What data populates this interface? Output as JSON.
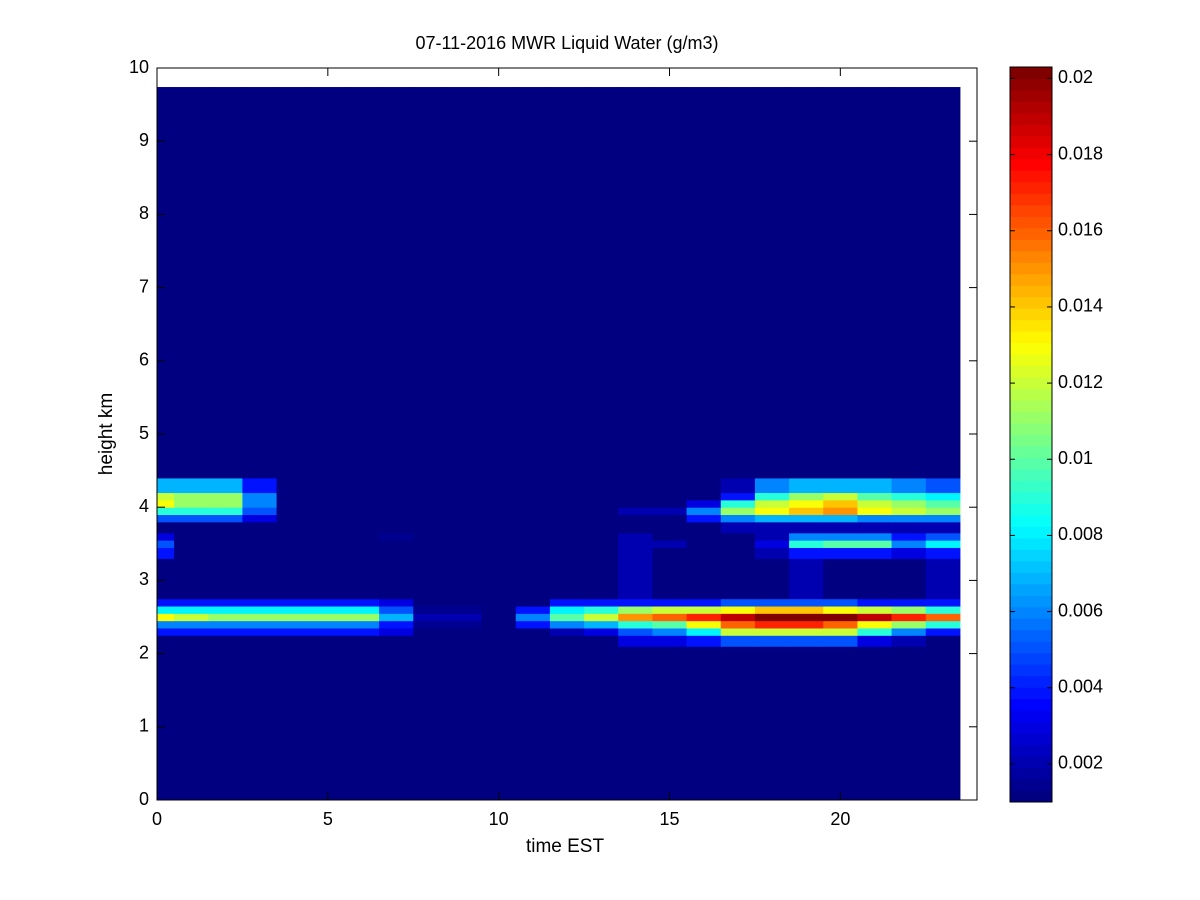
{
  "chart_data": {
    "type": "heatmap",
    "title": "07-11-2016 MWR Liquid Water (g/m3)",
    "x_label": "time EST",
    "y_label": "height km",
    "colormap": "jet",
    "xlim": [
      0,
      24
    ],
    "ylim": [
      0,
      10
    ],
    "xticks": [
      0,
      5,
      10,
      15,
      20
    ],
    "yticks": [
      0,
      1,
      2,
      3,
      4,
      5,
      6,
      7,
      8,
      9,
      10
    ],
    "clim": [
      0.001,
      0.0203
    ],
    "cticks": [
      0.002,
      0.004,
      0.006,
      0.008,
      0.01,
      0.012,
      0.014,
      0.016,
      0.018,
      0.02
    ],
    "x": [
      0,
      1,
      2,
      3,
      4,
      5,
      6,
      7,
      8,
      9,
      10,
      11,
      12,
      13,
      14,
      15,
      16,
      17,
      18,
      19,
      20,
      21,
      22,
      23
    ],
    "y_bins": [
      0,
      2.1,
      2.25,
      2.35,
      2.45,
      2.55,
      2.65,
      2.75,
      3.3,
      3.45,
      3.55,
      3.65,
      3.8,
      3.9,
      4.0,
      4.1,
      4.2,
      4.4,
      9.74
    ],
    "z": [
      [
        0.001,
        0.001,
        0.001,
        0.001,
        0.001,
        0.001,
        0.001,
        0.001,
        0.001,
        0.001,
        0.001,
        0.001,
        0.001,
        0.001,
        0.001,
        0.001,
        0.001,
        0.001,
        0.001,
        0.001,
        0.001,
        0.001,
        0.001,
        0.001
      ],
      [
        0.001,
        0.001,
        0.001,
        0.001,
        0.001,
        0.001,
        0.001,
        0.001,
        0.001,
        0.001,
        0.001,
        0.001,
        0.001,
        0.001,
        0.003,
        0.003,
        0.004,
        0.005,
        0.005,
        0.005,
        0.005,
        0.003,
        0.002,
        0.001
      ],
      [
        0.004,
        0.004,
        0.004,
        0.004,
        0.004,
        0.004,
        0.004,
        0.003,
        0.001,
        0.001,
        0.001,
        0.001,
        0.002,
        0.003,
        0.005,
        0.006,
        0.008,
        0.012,
        0.012,
        0.012,
        0.012,
        0.009,
        0.006,
        0.004
      ],
      [
        0.006,
        0.006,
        0.006,
        0.006,
        0.006,
        0.006,
        0.006,
        0.004,
        0.0015,
        0.0015,
        0.001,
        0.004,
        0.006,
        0.007,
        0.009,
        0.01,
        0.013,
        0.016,
        0.017,
        0.017,
        0.016,
        0.013,
        0.011,
        0.009
      ],
      [
        0.013,
        0.012,
        0.011,
        0.011,
        0.011,
        0.011,
        0.011,
        0.007,
        0.002,
        0.002,
        0.001,
        0.006,
        0.01,
        0.012,
        0.015,
        0.016,
        0.017,
        0.019,
        0.02,
        0.0203,
        0.02,
        0.019,
        0.017,
        0.016
      ],
      [
        0.008,
        0.008,
        0.008,
        0.008,
        0.008,
        0.008,
        0.008,
        0.005,
        0.0015,
        0.0015,
        0.001,
        0.004,
        0.008,
        0.009,
        0.011,
        0.012,
        0.012,
        0.013,
        0.014,
        0.014,
        0.013,
        0.012,
        0.011,
        0.009
      ],
      [
        0.004,
        0.004,
        0.004,
        0.004,
        0.004,
        0.004,
        0.004,
        0.003,
        0.001,
        0.001,
        0.001,
        0.001,
        0.004,
        0.004,
        0.004,
        0.004,
        0.004,
        0.005,
        0.005,
        0.005,
        0.005,
        0.004,
        0.004,
        0.004
      ],
      [
        0.001,
        0.001,
        0.001,
        0.001,
        0.001,
        0.001,
        0.001,
        0.001,
        0.001,
        0.001,
        0.001,
        0.001,
        0.001,
        0.001,
        0.002,
        0.001,
        0.001,
        0.001,
        0.001,
        0.002,
        0.001,
        0.001,
        0.001,
        0.002
      ],
      [
        0.004,
        0.001,
        0.001,
        0.001,
        0.001,
        0.001,
        0.001,
        0.001,
        0.001,
        0.001,
        0.001,
        0.001,
        0.001,
        0.001,
        0.002,
        0.001,
        0.001,
        0.001,
        0.002,
        0.004,
        0.004,
        0.004,
        0.003,
        0.004
      ],
      [
        0.005,
        0.001,
        0.001,
        0.001,
        0.001,
        0.001,
        0.001,
        0.001,
        0.001,
        0.001,
        0.001,
        0.001,
        0.001,
        0.001,
        0.002,
        0.002,
        0.001,
        0.001,
        0.003,
        0.009,
        0.01,
        0.01,
        0.006,
        0.008
      ],
      [
        0.003,
        0.001,
        0.001,
        0.001,
        0.001,
        0.001,
        0.001,
        0.0015,
        0.001,
        0.001,
        0.001,
        0.001,
        0.001,
        0.001,
        0.002,
        0.001,
        0.001,
        0.001,
        0.002,
        0.006,
        0.006,
        0.006,
        0.004,
        0.005
      ],
      [
        0.001,
        0.001,
        0.001,
        0.001,
        0.001,
        0.001,
        0.001,
        0.001,
        0.001,
        0.001,
        0.001,
        0.001,
        0.001,
        0.001,
        0.001,
        0.001,
        0.001,
        0.002,
        0.002,
        0.002,
        0.002,
        0.002,
        0.002,
        0.002
      ],
      [
        0.005,
        0.005,
        0.005,
        0.003,
        0.001,
        0.001,
        0.001,
        0.001,
        0.001,
        0.001,
        0.001,
        0.001,
        0.001,
        0.001,
        0.001,
        0.001,
        0.004,
        0.006,
        0.007,
        0.007,
        0.007,
        0.006,
        0.006,
        0.006
      ],
      [
        0.009,
        0.009,
        0.009,
        0.005,
        0.001,
        0.001,
        0.001,
        0.001,
        0.001,
        0.001,
        0.001,
        0.001,
        0.001,
        0.001,
        0.002,
        0.002,
        0.006,
        0.011,
        0.013,
        0.014,
        0.015,
        0.013,
        0.012,
        0.011
      ],
      [
        0.013,
        0.011,
        0.011,
        0.006,
        0.001,
        0.001,
        0.001,
        0.001,
        0.001,
        0.001,
        0.001,
        0.001,
        0.001,
        0.001,
        0.001,
        0.001,
        0.003,
        0.009,
        0.012,
        0.013,
        0.014,
        0.012,
        0.011,
        0.01
      ],
      [
        0.012,
        0.011,
        0.011,
        0.006,
        0.001,
        0.001,
        0.001,
        0.001,
        0.001,
        0.001,
        0.001,
        0.001,
        0.001,
        0.001,
        0.001,
        0.001,
        0.001,
        0.004,
        0.009,
        0.011,
        0.012,
        0.01,
        0.009,
        0.008
      ],
      [
        0.007,
        0.007,
        0.007,
        0.004,
        0.001,
        0.001,
        0.001,
        0.001,
        0.001,
        0.001,
        0.001,
        0.001,
        0.001,
        0.001,
        0.001,
        0.001,
        0.001,
        0.002,
        0.006,
        0.007,
        0.007,
        0.007,
        0.006,
        0.005
      ],
      [
        0.001,
        0.001,
        0.001,
        0.001,
        0.001,
        0.001,
        0.001,
        0.001,
        0.001,
        0.001,
        0.001,
        0.001,
        0.001,
        0.001,
        0.001,
        0.001,
        0.001,
        0.001,
        0.001,
        0.001,
        0.001,
        0.001,
        0.001,
        0.001
      ]
    ]
  }
}
